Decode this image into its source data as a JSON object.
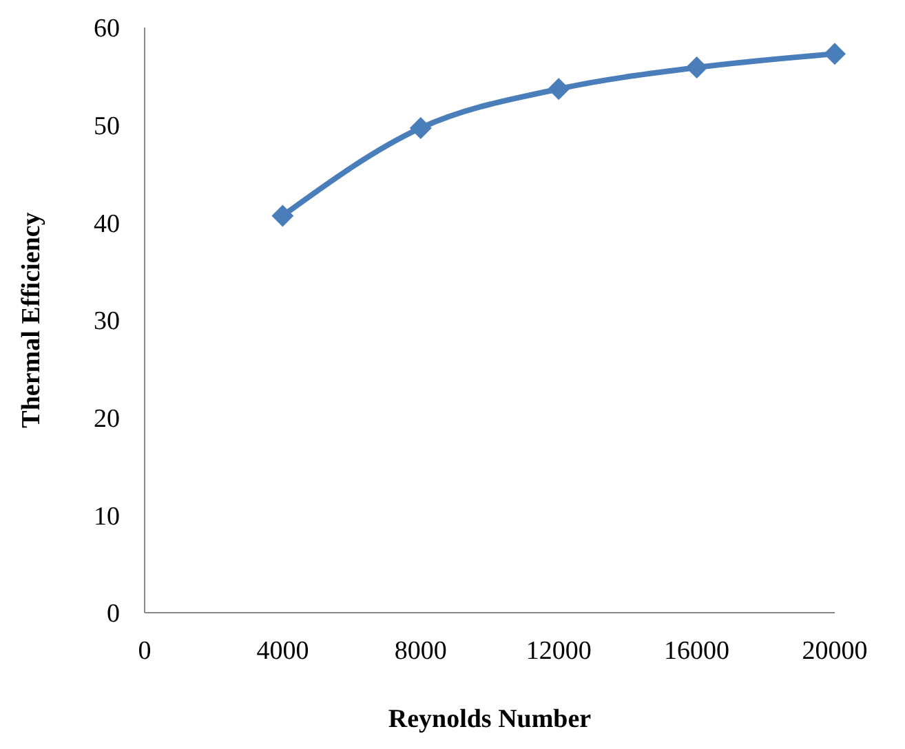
{
  "chart_data": {
    "type": "line",
    "xlabel": "Reynolds Number",
    "ylabel": "Thermal Efficiency",
    "x": [
      4000,
      8000,
      12000,
      16000,
      20000
    ],
    "series": [
      {
        "color": "#4a7ebb",
        "values": [
          40.7,
          49.7,
          53.7,
          55.9,
          57.3
        ]
      }
    ],
    "xlim": [
      0,
      20000
    ],
    "xticks": [
      0,
      4000,
      8000,
      12000,
      16000,
      20000
    ],
    "ylim": [
      0,
      60
    ],
    "yticks": [
      0,
      10,
      20,
      30,
      40,
      50,
      60
    ],
    "grid": false,
    "legend": false,
    "marker": "diamond",
    "line_style": "solid"
  }
}
